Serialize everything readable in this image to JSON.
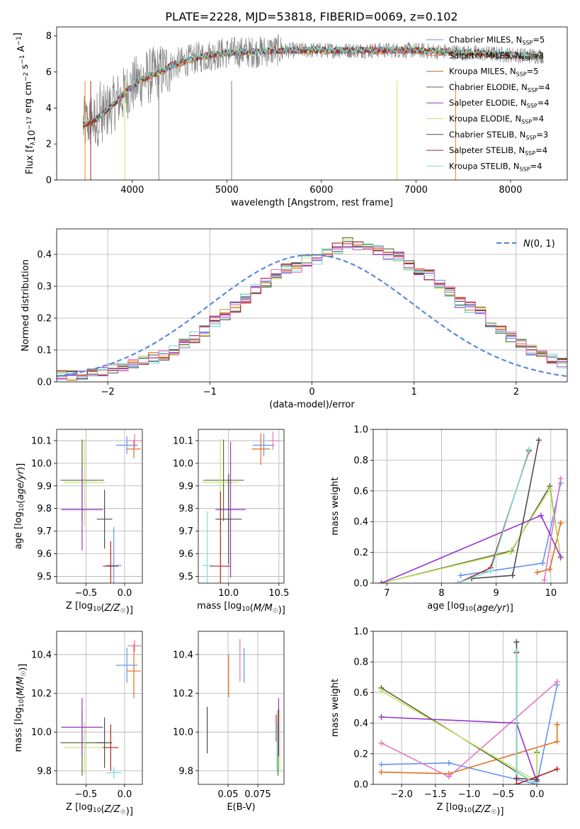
{
  "figure": {
    "title": "PLATE=2228, MJD=53818, FIBERID=0069, z=0.102"
  },
  "colors": {
    "chabrier_miles": "#6495ed",
    "salpeter_miles": "#ff7f0e",
    "kroupa_miles": "#d2691e",
    "chabrier_elodie": "#556b2f",
    "salpeter_elodie": "#9932cc",
    "kroupa_elodie": "#c8e66e",
    "chabrier_stelib": "#4d4d4d",
    "salpeter_stelib": "#b22222",
    "kroupa_stelib": "#76e0dc",
    "pink": "#e377c2",
    "orange": "#e07020",
    "data": "#808080"
  },
  "chart_data": [
    {
      "id": "spectrum",
      "type": "line",
      "xlabel": "wavelength [Angstrom, rest frame]",
      "ylabel": "Flux [f_λ10^-17 erg cm^-2 s^-1 A^-1]",
      "xlim": [
        3200,
        8600
      ],
      "ylim": [
        0,
        8.5
      ],
      "xticks": [
        4000,
        5000,
        6000,
        7000,
        8000
      ],
      "yticks": [
        0,
        2,
        4,
        6,
        8
      ],
      "legend": [
        "Chabrier MILES, N_SSP=5",
        "Salpeter MILES, N_SSP=3",
        "Kroupa MILES, N_SSP=5",
        "Chabrier ELODIE, N_SSP=4",
        "Salpeter ELODIE, N_SSP=4",
        "Kroupa ELODIE, N_SSP=4",
        "Chabrier STELIB, N_SSP=3",
        "Salpeter STELIB, N_SSP=4",
        "Kroupa STELIB, N_SSP=4"
      ],
      "continuum": {
        "x": [
          3500,
          3600,
          3700,
          3800,
          3900,
          4000,
          4100,
          4200,
          4300,
          4400,
          4500,
          4700,
          4900,
          5100,
          5300,
          5500,
          5700,
          6000,
          6300,
          6600,
          7000,
          7400,
          7800,
          8200,
          8350
        ],
        "y": [
          3.1,
          3.3,
          3.7,
          4.2,
          4.7,
          5.2,
          5.6,
          5.8,
          6.0,
          6.3,
          6.5,
          6.8,
          7.0,
          7.1,
          7.1,
          7.2,
          7.2,
          7.2,
          7.2,
          7.2,
          7.2,
          7.1,
          7.0,
          6.9,
          6.9
        ]
      }
    },
    {
      "id": "residuals",
      "type": "line",
      "xlabel": "(data-model)/error",
      "ylabel": "Normed distribution",
      "xlim": [
        -2.5,
        2.5
      ],
      "ylim": [
        0,
        0.48
      ],
      "xticks": [
        -2,
        -1,
        0,
        1,
        2
      ],
      "yticks": [
        0.0,
        0.1,
        0.2,
        0.3,
        0.4
      ],
      "legend": [
        "N(0,1)"
      ],
      "bin_edges_start": -2.5,
      "bin_width": 0.1,
      "histogram": [
        0.02,
        0.022,
        0.025,
        0.03,
        0.035,
        0.04,
        0.048,
        0.055,
        0.065,
        0.075,
        0.085,
        0.1,
        0.12,
        0.14,
        0.16,
        0.19,
        0.21,
        0.235,
        0.26,
        0.29,
        0.31,
        0.34,
        0.355,
        0.36,
        0.38,
        0.385,
        0.41,
        0.42,
        0.435,
        0.43,
        0.425,
        0.415,
        0.4,
        0.39,
        0.365,
        0.345,
        0.335,
        0.31,
        0.28,
        0.25,
        0.235,
        0.22,
        0.19,
        0.165,
        0.14,
        0.12,
        0.1,
        0.085,
        0.07,
        0.06
      ]
    },
    {
      "id": "age_vs_Z",
      "type": "scatter",
      "xlabel": "Z [log10(Z/Z☉)]",
      "ylabel": "age  [log10(age/yr)]",
      "xlim": [
        -0.88,
        0.23
      ],
      "ylim": [
        9.47,
        10.15
      ],
      "xticks": [
        -0.5,
        0.0
      ],
      "yticks": [
        9.5,
        9.6,
        9.7,
        9.8,
        9.9,
        10.0,
        10.1
      ],
      "points": [
        {
          "x": -0.14,
          "y": 9.548,
          "xerr": 0.1,
          "yerr": 0.17,
          "c": "chabrier_miles"
        },
        {
          "x": -0.55,
          "y": 9.925,
          "xerr": 0.28,
          "yerr": 0.18,
          "c": "chabrier_elodie"
        },
        {
          "x": -0.52,
          "y": 9.915,
          "xerr": 0.27,
          "yerr": 0.19,
          "c": "kroupa_elodie"
        },
        {
          "x": -0.55,
          "y": 9.795,
          "xerr": 0.27,
          "yerr": 0.18,
          "c": "salpeter_elodie"
        },
        {
          "x": -0.26,
          "y": 9.753,
          "xerr": 0.1,
          "yerr": 0.13,
          "c": "chabrier_stelib"
        },
        {
          "x": -0.18,
          "y": 9.545,
          "xerr": 0.1,
          "yerr": 0.11,
          "c": "salpeter_stelib"
        },
        {
          "x": 0.03,
          "y": 10.08,
          "xerr": 0.14,
          "yerr": 0.04,
          "c": "chabrier_miles"
        },
        {
          "x": 0.12,
          "y": 10.063,
          "xerr": 0.09,
          "yerr": 0.04,
          "c": "orange"
        },
        {
          "x": 0.13,
          "y": 10.1,
          "xerr": 0.09,
          "yerr": 0.03,
          "c": "pink"
        }
      ]
    },
    {
      "id": "age_vs_mass",
      "type": "scatter",
      "xlabel": "mass [log10(M/M☉)]",
      "ylabel": "",
      "xlim": [
        9.7,
        10.55
      ],
      "ylim": [
        9.47,
        10.15
      ],
      "xticks": [
        10.0,
        10.5
      ],
      "yticks": [
        9.5,
        9.6,
        9.7,
        9.8,
        9.9,
        10.0,
        10.1
      ],
      "points": [
        {
          "x": 9.79,
          "y": 9.548,
          "xerr": 0.05,
          "yerr": 0.24,
          "c": "kroupa_stelib"
        },
        {
          "x": 9.95,
          "y": 9.925,
          "xerr": 0.2,
          "yerr": 0.18,
          "c": "chabrier_elodie"
        },
        {
          "x": 9.92,
          "y": 9.915,
          "xerr": 0.18,
          "yerr": 0.19,
          "c": "kroupa_elodie"
        },
        {
          "x": 10.02,
          "y": 9.795,
          "xerr": 0.15,
          "yerr": 0.3,
          "c": "salpeter_elodie"
        },
        {
          "x": 10.0,
          "y": 9.753,
          "xerr": 0.13,
          "yerr": 0.2,
          "c": "chabrier_stelib"
        },
        {
          "x": 9.92,
          "y": 9.545,
          "xerr": 0.1,
          "yerr": 0.33,
          "c": "salpeter_stelib"
        },
        {
          "x": 10.35,
          "y": 10.08,
          "xerr": 0.11,
          "yerr": 0.05,
          "c": "chabrier_miles"
        },
        {
          "x": 10.32,
          "y": 10.063,
          "xerr": 0.09,
          "yerr": 0.07,
          "c": "orange"
        },
        {
          "x": 10.44,
          "y": 10.1,
          "xerr": 0.07,
          "yerr": 0.04,
          "c": "pink"
        }
      ]
    },
    {
      "id": "mass_weight_vs_age",
      "type": "line",
      "xlabel": "age  [log10(age/yr)]",
      "ylabel": "mass weight",
      "xlim": [
        6.75,
        10.3
      ],
      "ylim": [
        0,
        1.0
      ],
      "xticks": [
        7,
        8,
        9,
        10
      ],
      "yticks": [
        0.0,
        0.2,
        0.4,
        0.6,
        0.8,
        1.0
      ],
      "series": [
        {
          "c": "chabrier_miles",
          "x": [
            8.35,
            9.85,
            10.18
          ],
          "y": [
            0.05,
            0.13,
            0.65
          ]
        },
        {
          "c": "orange",
          "x": [
            9.75,
            9.98,
            10.18
          ],
          "y": [
            0.07,
            0.09,
            0.39
          ]
        },
        {
          "c": "chabrier_elodie",
          "x": [
            6.9,
            9.28,
            9.98,
            10.18
          ],
          "y": [
            0.0,
            0.21,
            0.63,
            0.16
          ]
        },
        {
          "c": "kroupa_elodie",
          "x": [
            6.9,
            9.25,
            9.98,
            10.18
          ],
          "y": [
            0.0,
            0.2,
            0.61,
            0.16
          ]
        },
        {
          "c": "salpeter_elodie",
          "x": [
            6.9,
            9.82,
            10.18
          ],
          "y": [
            0.0,
            0.44,
            0.17
          ]
        },
        {
          "c": "chabrier_stelib",
          "x": [
            8.55,
            9.3,
            9.78
          ],
          "y": [
            0.03,
            0.05,
            0.93
          ]
        },
        {
          "c": "salpeter_stelib",
          "x": [
            8.3,
            8.9,
            9.6
          ],
          "y": [
            0.0,
            0.1,
            0.86
          ]
        },
        {
          "c": "kroupa_stelib",
          "x": [
            8.3,
            8.9,
            9.6
          ],
          "y": [
            0.0,
            0.08,
            0.87
          ]
        },
        {
          "c": "pink",
          "x": [
            9.88,
            10.18
          ],
          "y": [
            0.02,
            0.68
          ]
        }
      ]
    },
    {
      "id": "mass_vs_Z",
      "type": "scatter",
      "xlabel": "Z [log10(Z/Z☉)]",
      "ylabel": "mass [log10(M/M☉)]",
      "xlim": [
        -0.88,
        0.23
      ],
      "ylim": [
        9.73,
        10.52
      ],
      "xticks": [
        -0.5,
        0.0
      ],
      "yticks": [
        9.8,
        10.0,
        10.2,
        10.4
      ],
      "points": [
        {
          "x": -0.14,
          "y": 9.79,
          "xerr": 0.1,
          "yerr": 0.03,
          "c": "kroupa_stelib"
        },
        {
          "x": -0.55,
          "y": 9.945,
          "xerr": 0.28,
          "yerr": 0.17,
          "c": "chabrier_elodie"
        },
        {
          "x": -0.52,
          "y": 9.92,
          "xerr": 0.27,
          "yerr": 0.13,
          "c": "kroupa_elodie"
        },
        {
          "x": -0.55,
          "y": 10.025,
          "xerr": 0.27,
          "yerr": 0.15,
          "c": "salpeter_elodie"
        },
        {
          "x": -0.26,
          "y": 9.945,
          "xerr": 0.1,
          "yerr": 0.13,
          "c": "chabrier_stelib"
        },
        {
          "x": -0.18,
          "y": 9.92,
          "xerr": 0.1,
          "yerr": 0.12,
          "c": "salpeter_stelib"
        },
        {
          "x": 0.03,
          "y": 10.345,
          "xerr": 0.14,
          "yerr": 0.09,
          "c": "chabrier_miles"
        },
        {
          "x": 0.12,
          "y": 10.315,
          "xerr": 0.09,
          "yerr": 0.14,
          "c": "orange"
        },
        {
          "x": 0.13,
          "y": 10.445,
          "xerr": 0.09,
          "yerr": 0.03,
          "c": "pink"
        }
      ]
    },
    {
      "id": "mass_vs_ebv",
      "type": "scatter",
      "xlabel": "E(B-V)",
      "ylabel": "",
      "xlim": [
        0.025,
        0.097
      ],
      "ylim": [
        9.73,
        10.52
      ],
      "xticks": [
        0.05,
        0.075
      ],
      "yticks": [
        9.8,
        10.0,
        10.2,
        10.4
      ],
      "points": [
        {
          "x": 0.0325,
          "y": 10.01,
          "yerr": 0.12,
          "c": "chabrier_stelib"
        },
        {
          "x": 0.0505,
          "y": 10.29,
          "yerr": 0.11,
          "c": "orange"
        },
        {
          "x": 0.06,
          "y": 10.37,
          "yerr": 0.11,
          "c": "pink"
        },
        {
          "x": 0.0635,
          "y": 10.345,
          "yerr": 0.09,
          "c": "chabrier_miles"
        },
        {
          "x": 0.0905,
          "y": 10.02,
          "yerr": 0.07,
          "c": "salpeter_stelib"
        },
        {
          "x": 0.091,
          "y": 9.92,
          "yerr": 0.13,
          "c": "kroupa_stelib"
        },
        {
          "x": 0.092,
          "y": 9.945,
          "yerr": 0.17,
          "c": "chabrier_elodie"
        },
        {
          "x": 0.0925,
          "y": 10.025,
          "yerr": 0.15,
          "c": "salpeter_elodie"
        },
        {
          "x": 0.0935,
          "y": 9.96,
          "yerr": 0.16,
          "c": "kroupa_elodie"
        }
      ]
    },
    {
      "id": "mass_weight_vs_Z",
      "type": "line",
      "xlabel": "Z [log10(Z/Z☉)]",
      "ylabel": "mass weight",
      "xlim": [
        -2.42,
        0.45
      ],
      "ylim": [
        0,
        1.0
      ],
      "xticks": [
        -2.0,
        -1.5,
        -1.0,
        -0.5,
        0.0
      ],
      "yticks": [
        0.0,
        0.2,
        0.4,
        0.6,
        0.8,
        1.0
      ],
      "series": [
        {
          "c": "chabrier_miles",
          "x": [
            -2.3,
            -1.3,
            0.0,
            0.3
          ],
          "y": [
            0.13,
            0.14,
            0.0,
            0.65
          ]
        },
        {
          "c": "orange",
          "x": [
            -2.3,
            -1.3,
            0.3,
            0.3
          ],
          "y": [
            0.08,
            0.07,
            0.28,
            0.39
          ]
        },
        {
          "c": "pink",
          "x": [
            -2.3,
            -1.3,
            0.3
          ],
          "y": [
            0.27,
            0.05,
            0.67
          ]
        },
        {
          "c": "chabrier_elodie",
          "x": [
            -2.3,
            0.0,
            0.0
          ],
          "y": [
            0.63,
            0.0,
            0.21
          ]
        },
        {
          "c": "kroupa_elodie",
          "x": [
            -2.3,
            0.0,
            0.0
          ],
          "y": [
            0.61,
            0.02,
            0.2
          ]
        },
        {
          "c": "salpeter_elodie",
          "x": [
            -2.3,
            -0.3,
            0.0
          ],
          "y": [
            0.44,
            0.4,
            0.02
          ]
        },
        {
          "c": "chabrier_stelib",
          "x": [
            -0.3,
            -0.3,
            0.0
          ],
          "y": [
            0.93,
            0.04,
            0.03
          ]
        },
        {
          "c": "salpeter_stelib",
          "x": [
            -0.3,
            -0.3,
            0.3
          ],
          "y": [
            0.86,
            0.0,
            0.1
          ]
        },
        {
          "c": "kroupa_stelib",
          "x": [
            -0.3,
            -0.3,
            0.0
          ],
          "y": [
            0.87,
            0.08,
            0.0
          ]
        }
      ]
    }
  ]
}
